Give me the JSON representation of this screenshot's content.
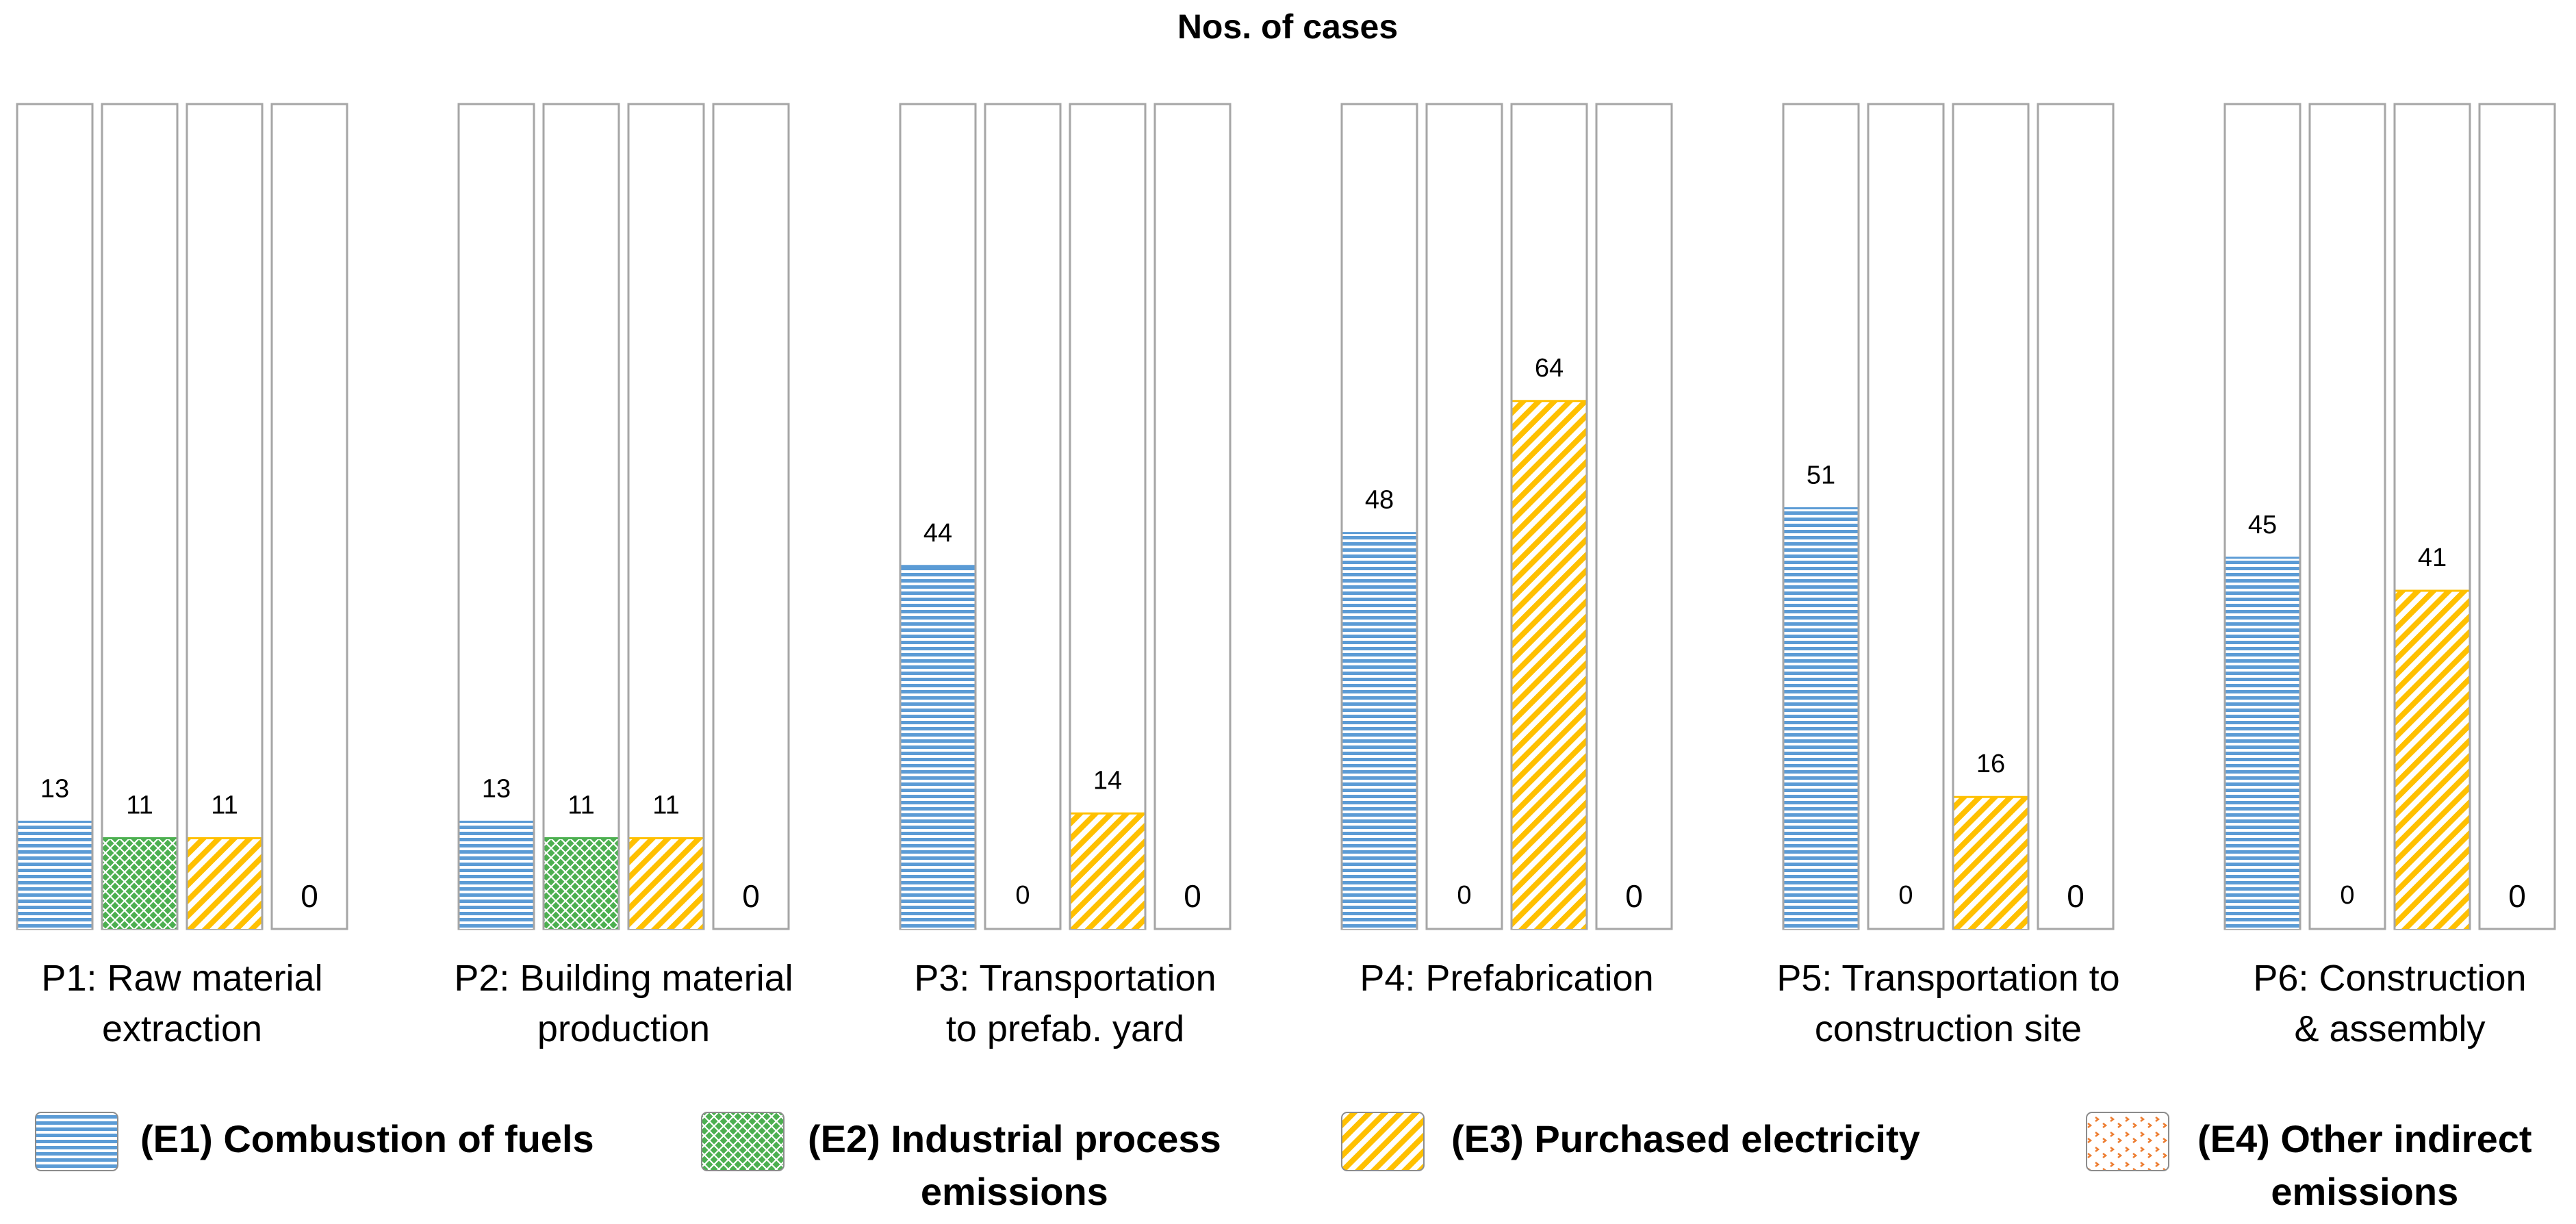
{
  "chart_data": {
    "type": "bar",
    "title": "Nos. of cases",
    "ylim": [
      0,
      100
    ],
    "grid": false,
    "legend_placement": "bottom",
    "groups": [
      {
        "label_lines": [
          "P1: Raw material",
          "extraction"
        ],
        "values": [
          13,
          11,
          11,
          0
        ]
      },
      {
        "label_lines": [
          "P2: Building material",
          "production"
        ],
        "values": [
          13,
          11,
          11,
          0
        ]
      },
      {
        "label_lines": [
          "P3: Transportation",
          "to prefab. yard"
        ],
        "values": [
          44,
          0,
          14,
          0
        ]
      },
      {
        "label_lines": [
          "P4: Prefabrication"
        ],
        "values": [
          48,
          0,
          64,
          0
        ]
      },
      {
        "label_lines": [
          "P5: Transportation to",
          "construction site"
        ],
        "values": [
          51,
          0,
          16,
          0
        ]
      },
      {
        "label_lines": [
          "P6: Construction",
          "& assembly"
        ],
        "values": [
          45,
          0,
          41,
          0
        ]
      }
    ],
    "series": [
      {
        "name": "(E1) Combustion of fuels",
        "name_lines": [
          "(E1) Combustion of fuels"
        ],
        "color": "#5b9bd5",
        "pattern": "horizontal-lines"
      },
      {
        "name": "(E2) Industrial process emissions",
        "name_lines": [
          "(E2) Industrial process",
          "emissions"
        ],
        "color": "#4caf50",
        "pattern": "crosshatch"
      },
      {
        "name": "(E3) Purchased electricity",
        "name_lines": [
          "(E3) Purchased electricity"
        ],
        "color": "#ffc000",
        "pattern": "diagonal-lines"
      },
      {
        "name": "(E4) Other indirect emissions",
        "name_lines": [
          "(E4) Other indirect",
          "emissions"
        ],
        "color": "#ed7d31",
        "pattern": "dotted-grid"
      }
    ]
  }
}
